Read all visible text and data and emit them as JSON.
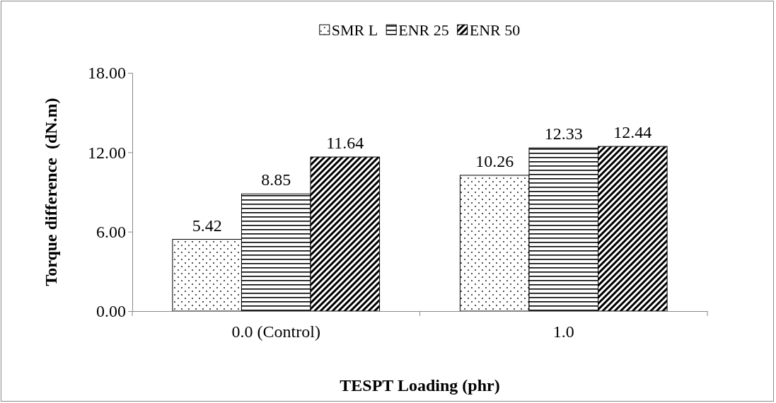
{
  "chart_data": {
    "type": "bar",
    "xlabel": "TESPT Loading (phr)",
    "ylabel": "Torque difference  (dN.m)",
    "categories": [
      "0.0 (Control)",
      "1.0"
    ],
    "series": [
      {
        "name": "SMR L",
        "color": "#000000",
        "values": [
          5.42,
          10.26
        ]
      },
      {
        "name": "ENR 25",
        "color": "#000000",
        "values": [
          8.85,
          12.33
        ]
      },
      {
        "name": "ENR 50",
        "color": "#000000",
        "values": [
          11.64,
          12.44
        ]
      }
    ],
    "ylim": [
      0,
      18
    ],
    "yticks": [
      {
        "value": 0,
        "label": "0.00"
      },
      {
        "value": 6,
        "label": "6.00"
      },
      {
        "value": 12,
        "label": "12.00"
      },
      {
        "value": 18,
        "label": "18.00"
      }
    ],
    "data_labels": true,
    "legend": "top",
    "grid": false
  }
}
